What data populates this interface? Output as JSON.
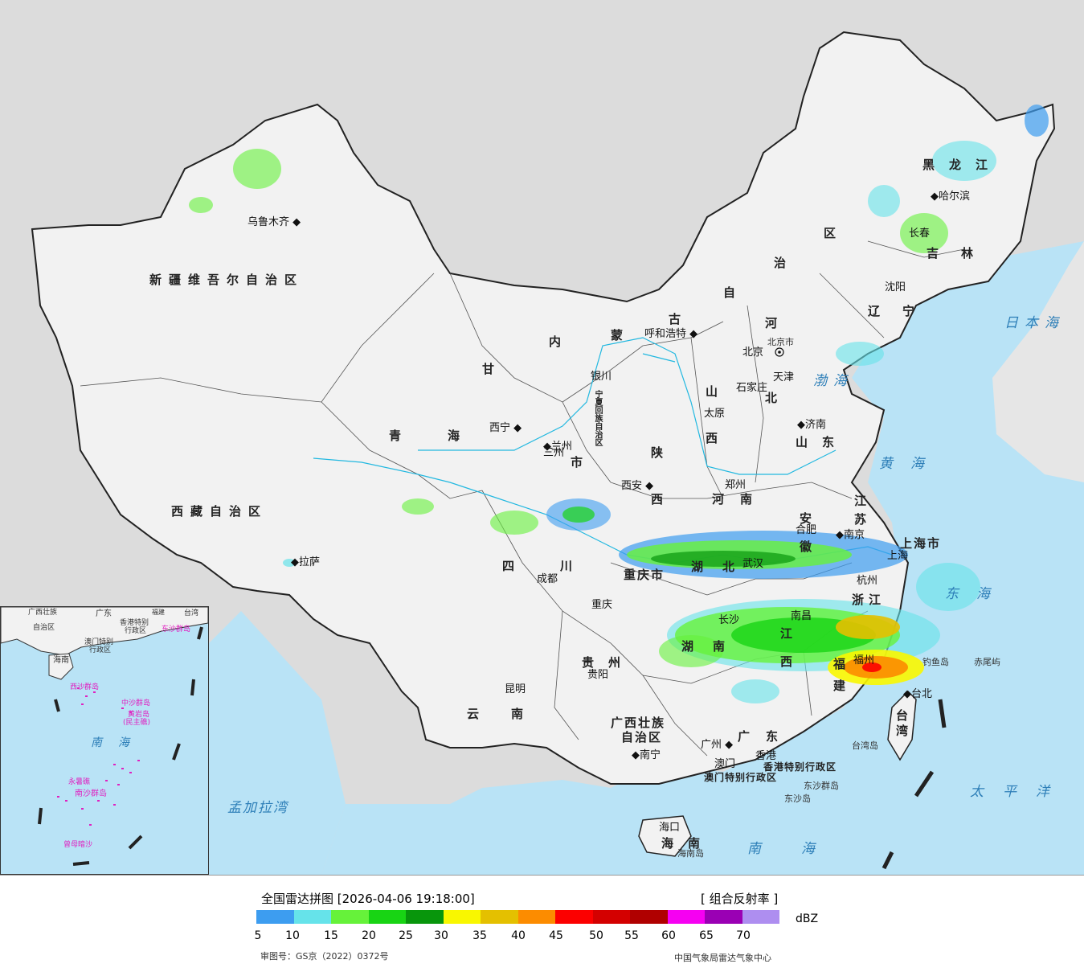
{
  "legend": {
    "title": "全国雷达拼图 [2026-04-06 19:18:00]",
    "product": "[ 组合反射率 ]",
    "unit": "dBZ",
    "colors": [
      "#3d9df0",
      "#66e3ea",
      "#66f23a",
      "#18d414",
      "#08960c",
      "#f9f700",
      "#e4c000",
      "#fc8c00",
      "#fc0000",
      "#d40000",
      "#b00000",
      "#f600f2",
      "#9a00b4",
      "#ae8ef0"
    ],
    "ticks": [
      "5",
      "10",
      "15",
      "20",
      "25",
      "30",
      "35",
      "40",
      "45",
      "50",
      "55",
      "60",
      "65",
      "70"
    ],
    "audit": "审图号：GS京（2022）0372号",
    "org": "中国气象局雷达气象中心"
  },
  "cities": {
    "urumqi": "乌鲁木齐",
    "lhasa": "拉萨",
    "xining": "西宁",
    "lanzhou": "兰州",
    "yinchuan": "银川",
    "hohhot": "呼和浩特",
    "beijing": "北京",
    "tianjin": "天津",
    "shijiazhuang": "石家庄",
    "taiyuan": "太原",
    "jinan": "济南",
    "zhengzhou": "郑州",
    "xian": "西安",
    "chengdu": "成都",
    "chongqing": "重庆",
    "guiyang": "贵阳",
    "kunming": "昆明",
    "nanning": "南宁",
    "guangzhou": "广州",
    "macau": "澳门",
    "hongkong": "香港",
    "haikou": "海口",
    "taibei": "台北",
    "fuzhou": "福州",
    "nanchang": "南昌",
    "changsha": "长沙",
    "wuhan": "武汉",
    "hefei": "合肥",
    "nanjing": "南京",
    "hangzhou": "杭州",
    "shanghai": "上海",
    "shenyang": "沈阳",
    "changchun": "长春",
    "harbin": "哈尔滨"
  },
  "provinces": {
    "xinjiang": "新疆维吾尔自治区",
    "xizang": "西藏自治区",
    "qinghai": "青海",
    "gansu": "甘",
    "neimenggu_a": "内",
    "neimenggu_b": "蒙",
    "neimenggu_c": "古",
    "neimenggu_d": "自",
    "neimenggu_e": "治",
    "neimenggu_f": "区",
    "heilongjiang": "黑龙江",
    "jilin": "吉林",
    "liaoning": "辽宁",
    "hebei_a": "河",
    "hebei_b": "北",
    "shanxi_a": "山",
    "shanxi_b": "西",
    "shandong": "山东",
    "henan": "河南",
    "shaanxi_a": "陕",
    "shaanxi_b": "西",
    "ningxia": "宁夏回族自治区",
    "sichuan_a": "四",
    "sichuan_b": "川",
    "chongqing_shi": "重庆市",
    "guizhou": "贵州",
    "yunnan": "云南",
    "guangxi_a": "广西壮族",
    "guangxi_b": "自治区",
    "guangdong": "广东",
    "hainan": "海南",
    "hubei": "湖北",
    "hunan": "湖南",
    "anhui": "安徽",
    "jiangsu": "江苏",
    "shanghai_shi": "上海市",
    "zhejiang": "浙江",
    "jiangxi": "江西",
    "fujian": "福建",
    "taiwan": "台湾",
    "hk_sar": "香港特别行政区",
    "mo_sar": "澳门特别行政区",
    "beijing_shi": "北京市",
    "tianjin_shi": "天津",
    "gansu_b": "三州",
    "shi": "市"
  },
  "seas": {
    "japan": "日本海",
    "bohai": "渤海",
    "yellow": "黄海",
    "east": "东海",
    "pacific": "太平洋",
    "south": "南海",
    "bengal": "孟加拉湾"
  },
  "islands": {
    "diaoyu": "钓鱼岛",
    "chiwei": "赤尾屿",
    "taiwan_island": "台湾岛",
    "dongsha_islands": "东沙群岛",
    "dongsha_island": "东沙岛",
    "hainan_island": "海南岛"
  },
  "inset": {
    "guangxi": "广西壮族",
    "guangxi2": "自治区",
    "guangdong": "广东",
    "fujian": "福建",
    "taiwan": "台湾",
    "hk": "香港特别",
    "hk2": "行政区",
    "mo": "澳门特别",
    "mo2": "行政区",
    "dongsha": "东沙群岛",
    "hainan": "海南",
    "xisha": "西沙群岛",
    "zhongsha": "中沙群岛",
    "huangyan": "黄岩岛",
    "huangyan2": "(民主礁)",
    "nansha": "南沙群岛",
    "yongshu": "永暑礁",
    "zengmu": "曾母暗沙",
    "sea": "南海"
  }
}
